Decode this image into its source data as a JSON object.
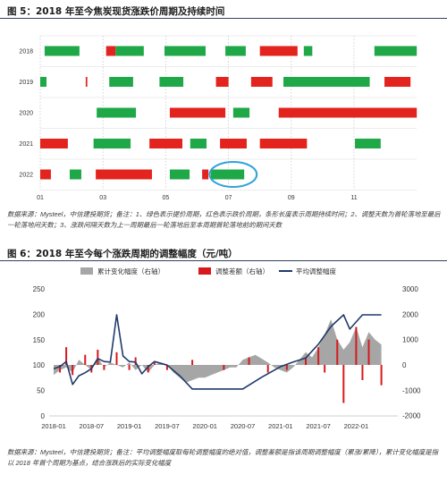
{
  "fig5": {
    "title": "图 5：2018 年至今焦炭现货涨跌价周期及持续时间",
    "note": "数据来源：Mysteel，中信建投期货；备注：1、绿色表示提价周期，红色表示跌价周期，条形长度表示周期持续时间；2、调整天数为首轮落地至最后一轮落地间天数；3、涨跌间隔天数为上一周期最后一轮落地后至本周期首轮落地前的期间天数"
  },
  "fig6": {
    "title": "图 6：2018 年至今每个涨跌周期的调整幅度（元/吨）",
    "note": "数据来源：Mysteel，中信建投期货；备注：平均调整幅度取每轮调整幅度的绝对值，调整差额是指该周期调整幅度（累涨/累降），累计变化幅度是指以 2018 年首个周期为基点，结合涨跌后的实际变化幅度"
  },
  "colors": {
    "rise": "#1fa848",
    "fall": "#e3231d",
    "highlight": "#2ea3d8"
  },
  "chart_data": [
    {
      "type": "bar",
      "orientation": "horizontal-range",
      "x_unit": "month",
      "x_range": [
        1,
        13
      ],
      "x_ticks": [
        {
          "label": "01",
          "value": 1
        },
        {
          "label": "03",
          "value": 3
        },
        {
          "label": "05",
          "value": 5
        },
        {
          "label": "07",
          "value": 7
        },
        {
          "label": "09",
          "value": 9
        },
        {
          "label": "11",
          "value": 11
        }
      ],
      "grid": true,
      "categories": [
        "2018",
        "2019",
        "2020",
        "2021",
        "2022"
      ],
      "segments": [
        [
          {
            "start": 1.14,
            "end": 2.25,
            "kind": "rise"
          },
          {
            "start": 3.1,
            "end": 3.4,
            "kind": "fall"
          },
          {
            "start": 3.4,
            "end": 4.3,
            "kind": "rise"
          },
          {
            "start": 4.96,
            "end": 6.27,
            "kind": "rise"
          },
          {
            "start": 6.9,
            "end": 7.55,
            "kind": "rise"
          },
          {
            "start": 8.0,
            "end": 9.2,
            "kind": "fall"
          },
          {
            "start": 9.4,
            "end": 9.67,
            "kind": "rise"
          },
          {
            "start": 11.65,
            "end": 13.0,
            "kind": "rise"
          }
        ],
        [
          {
            "start": 1.0,
            "end": 1.2,
            "kind": "rise"
          },
          {
            "start": 2.45,
            "end": 2.5,
            "kind": "fall"
          },
          {
            "start": 3.2,
            "end": 3.96,
            "kind": "rise"
          },
          {
            "start": 4.8,
            "end": 5.56,
            "kind": "rise"
          },
          {
            "start": 6.6,
            "end": 7.0,
            "kind": "fall"
          },
          {
            "start": 7.72,
            "end": 8.4,
            "kind": "fall"
          },
          {
            "start": 8.75,
            "end": 11.5,
            "kind": "rise"
          },
          {
            "start": 11.97,
            "end": 12.8,
            "kind": "fall"
          }
        ],
        [
          {
            "start": 2.8,
            "end": 4.05,
            "kind": "rise"
          },
          {
            "start": 5.13,
            "end": 6.9,
            "kind": "fall"
          },
          {
            "start": 7.15,
            "end": 7.67,
            "kind": "rise"
          },
          {
            "start": 8.6,
            "end": 13.0,
            "kind": "fall"
          }
        ],
        [
          {
            "start": 1.0,
            "end": 1.88,
            "kind": "fall"
          },
          {
            "start": 2.7,
            "end": 3.88,
            "kind": "rise"
          },
          {
            "start": 4.48,
            "end": 5.53,
            "kind": "fall"
          },
          {
            "start": 5.78,
            "end": 6.3,
            "kind": "rise"
          },
          {
            "start": 6.73,
            "end": 7.58,
            "kind": "fall"
          },
          {
            "start": 8.0,
            "end": 9.5,
            "kind": "fall"
          },
          {
            "start": 11.03,
            "end": 11.85,
            "kind": "rise"
          }
        ],
        [
          {
            "start": 1.0,
            "end": 1.34,
            "kind": "fall"
          },
          {
            "start": 1.94,
            "end": 2.31,
            "kind": "rise"
          },
          {
            "start": 2.77,
            "end": 4.56,
            "kind": "fall"
          },
          {
            "start": 5.13,
            "end": 5.76,
            "kind": "rise"
          },
          {
            "start": 6.16,
            "end": 6.36,
            "kind": "fall"
          },
          {
            "start": 6.44,
            "end": 7.5,
            "kind": "rise"
          }
        ]
      ],
      "highlight": {
        "row": "2022",
        "start": 6.4,
        "end": 7.9
      }
    },
    {
      "type": "line",
      "x_unit": "month",
      "x_range": [
        "2018-01",
        "2022-07"
      ],
      "x_ticks": [
        "2018-01",
        "2018-07",
        "2019-01",
        "2019-07",
        "2020-01",
        "2020-07",
        "2021-01",
        "2021-07",
        "2022-01"
      ],
      "y_left": {
        "range": [
          0,
          250
        ],
        "ticks": [
          0,
          50,
          100,
          150,
          200,
          250
        ]
      },
      "y_right": {
        "range": [
          -2000,
          3000
        ],
        "ticks": [
          -2000,
          -1000,
          0,
          1000,
          2000,
          3000
        ]
      },
      "legend": "top",
      "grid": false,
      "series": [
        {
          "name": "累计变化幅度（右轴）",
          "type": "area",
          "axis": "right",
          "color": "#a6a6a6",
          "points": [
            [
              "2018-01",
              -400
            ],
            [
              "2018-02",
              -200
            ],
            [
              "2018-03",
              -100
            ],
            [
              "2018-04",
              -300
            ],
            [
              "2018-05",
              200
            ],
            [
              "2018-06",
              0
            ],
            [
              "2018-07",
              -200
            ],
            [
              "2018-08",
              300
            ],
            [
              "2018-09",
              -100
            ],
            [
              "2018-10",
              100
            ],
            [
              "2018-11",
              0
            ],
            [
              "2018-12",
              -100
            ],
            [
              "2019-01",
              100
            ],
            [
              "2019-02",
              -200
            ],
            [
              "2019-03",
              0
            ],
            [
              "2019-04",
              -300
            ],
            [
              "2019-05",
              0
            ],
            [
              "2019-06",
              100
            ],
            [
              "2019-07",
              0
            ],
            [
              "2019-08",
              -300
            ],
            [
              "2019-09",
              -500
            ],
            [
              "2019-10",
              -700
            ],
            [
              "2019-11",
              -600
            ],
            [
              "2019-12",
              -500
            ],
            [
              "2020-01",
              -500
            ],
            [
              "2020-02",
              -400
            ],
            [
              "2020-03",
              -300
            ],
            [
              "2020-04",
              -200
            ],
            [
              "2020-05",
              -100
            ],
            [
              "2020-06",
              -100
            ],
            [
              "2020-07",
              200
            ],
            [
              "2020-08",
              300
            ],
            [
              "2020-09",
              400
            ],
            [
              "2020-10",
              250
            ],
            [
              "2020-11",
              100
            ],
            [
              "2020-12",
              -100
            ],
            [
              "2021-01",
              -200
            ],
            [
              "2021-02",
              -300
            ],
            [
              "2021-03",
              -100
            ],
            [
              "2021-04",
              200
            ],
            [
              "2021-05",
              500
            ],
            [
              "2021-06",
              300
            ],
            [
              "2021-07",
              700
            ],
            [
              "2021-08",
              1200
            ],
            [
              "2021-09",
              1800
            ],
            [
              "2021-10",
              1000
            ],
            [
              "2021-11",
              600
            ],
            [
              "2021-12",
              900
            ],
            [
              "2022-01",
              1500
            ],
            [
              "2022-02",
              700
            ],
            [
              "2022-03",
              1300
            ],
            [
              "2022-04",
              1000
            ],
            [
              "2022-05",
              800
            ]
          ]
        },
        {
          "name": "调整差额（右轴）",
          "type": "bar",
          "axis": "right",
          "color": "#d7191c",
          "points": [
            [
              "2018-02",
              -300
            ],
            [
              "2018-03",
              700
            ],
            [
              "2018-04",
              -400
            ],
            [
              "2018-06",
              400
            ],
            [
              "2018-07",
              -300
            ],
            [
              "2018-08",
              600
            ],
            [
              "2018-09",
              -200
            ],
            [
              "2018-11",
              500
            ],
            [
              "2019-01",
              -200
            ],
            [
              "2019-02",
              300
            ],
            [
              "2019-04",
              -300
            ],
            [
              "2019-05",
              100
            ],
            [
              "2019-07",
              -200
            ],
            [
              "2019-11",
              200
            ],
            [
              "2020-04",
              -200
            ],
            [
              "2020-08",
              300
            ],
            [
              "2020-11",
              -300
            ],
            [
              "2021-02",
              -200
            ],
            [
              "2021-05",
              300
            ],
            [
              "2021-07",
              700
            ],
            [
              "2021-08",
              -300
            ],
            [
              "2021-10",
              1000
            ],
            [
              "2021-11",
              -1500
            ],
            [
              "2022-01",
              1500
            ],
            [
              "2022-02",
              -600
            ],
            [
              "2022-03",
              1000
            ],
            [
              "2022-05",
              -800
            ]
          ]
        },
        {
          "name": "平均调整幅度",
          "type": "line",
          "axis": "left",
          "color": "#1f3a6b",
          "points": [
            [
              "2018-01",
              93
            ],
            [
              "2018-02",
              97
            ],
            [
              "2018-03",
              107
            ],
            [
              "2018-04",
              62
            ],
            [
              "2018-05",
              79
            ],
            [
              "2018-06",
              85
            ],
            [
              "2018-07",
              93
            ],
            [
              "2018-08",
              113
            ],
            [
              "2018-09",
              107
            ],
            [
              "2018-10",
              106
            ],
            [
              "2018-11",
              199
            ],
            [
              "2018-12",
              118
            ],
            [
              "2019-01",
              107
            ],
            [
              "2019-02",
              106
            ],
            [
              "2019-03",
              83
            ],
            [
              "2019-04",
              97
            ],
            [
              "2019-05",
              107
            ],
            [
              "2019-07",
              100
            ],
            [
              "2019-09",
              79
            ],
            [
              "2019-11",
              53
            ],
            [
              "2020-01",
              53
            ],
            [
              "2020-07",
              53
            ],
            [
              "2020-10",
              76
            ],
            [
              "2021-01",
              97
            ],
            [
              "2021-03",
              106
            ],
            [
              "2021-05",
              114
            ],
            [
              "2021-07",
              141
            ],
            [
              "2021-09",
              176
            ],
            [
              "2021-11",
              199
            ],
            [
              "2021-12",
              171
            ],
            [
              "2022-02",
              199
            ],
            [
              "2022-05",
              199
            ]
          ]
        }
      ]
    }
  ]
}
